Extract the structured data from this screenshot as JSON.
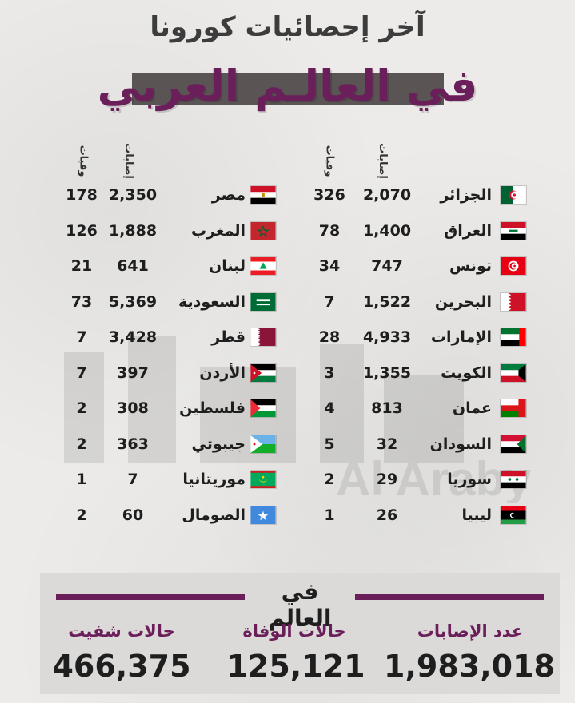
{
  "header": {
    "line1": "آخر إحصائيات كورونا",
    "line2": "في العالـم العربي"
  },
  "columns": {
    "cases": "إصابات",
    "deaths": "وفيات"
  },
  "right_table": [
    {
      "name": "الجزائر",
      "cases": "2,070",
      "deaths": "326",
      "flag": "algeria-flag"
    },
    {
      "name": "العراق",
      "cases": "1,400",
      "deaths": "78",
      "flag": "iraq-flag"
    },
    {
      "name": "تونس",
      "cases": "747",
      "deaths": "34",
      "flag": "tunisia-flag"
    },
    {
      "name": "البحرين",
      "cases": "1,522",
      "deaths": "7",
      "flag": "bahrain-flag"
    },
    {
      "name": "الإمارات",
      "cases": "4,933",
      "deaths": "28",
      "flag": "uae-flag"
    },
    {
      "name": "الكويت",
      "cases": "1,355",
      "deaths": "3",
      "flag": "kuwait-flag"
    },
    {
      "name": "عمان",
      "cases": "813",
      "deaths": "4",
      "flag": "oman-flag"
    },
    {
      "name": "السودان",
      "cases": "32",
      "deaths": "5",
      "flag": "sudan-flag"
    },
    {
      "name": "سوريا",
      "cases": "29",
      "deaths": "2",
      "flag": "syria-flag"
    },
    {
      "name": "ليبيا",
      "cases": "26",
      "deaths": "1",
      "flag": "libya-flag"
    }
  ],
  "left_table": [
    {
      "name": "مصر",
      "cases": "2,350",
      "deaths": "178",
      "flag": "egypt-flag"
    },
    {
      "name": "المغرب",
      "cases": "1,888",
      "deaths": "126",
      "flag": "morocco-flag"
    },
    {
      "name": "لبنان",
      "cases": "641",
      "deaths": "21",
      "flag": "lebanon-flag"
    },
    {
      "name": "السعودية",
      "cases": "5,369",
      "deaths": "73",
      "flag": "saudi-flag"
    },
    {
      "name": "قطر",
      "cases": "3,428",
      "deaths": "7",
      "flag": "qatar-flag"
    },
    {
      "name": "الأردن",
      "cases": "397",
      "deaths": "7",
      "flag": "jordan-flag"
    },
    {
      "name": "فلسطين",
      "cases": "308",
      "deaths": "2",
      "flag": "palestine-flag"
    },
    {
      "name": "جيبوتي",
      "cases": "363",
      "deaths": "2",
      "flag": "djibouti-flag"
    },
    {
      "name": "موريتانيا",
      "cases": "7",
      "deaths": "1",
      "flag": "mauritania-flag"
    },
    {
      "name": "الصومال",
      "cases": "60",
      "deaths": "2",
      "flag": "somalia-flag"
    }
  ],
  "world": {
    "title": "في العالم",
    "cases_label": "عدد الإصابات",
    "cases_value": "1,983,018",
    "deaths_label": "حالات الوفاة",
    "deaths_value": "125,121",
    "recovered_label": "حالات شفيت",
    "recovered_value": "466,375"
  },
  "colors": {
    "accent": "#6b1f5a",
    "background": "#ecebe9",
    "text": "#1e1e1e",
    "bar": "#5a5554"
  },
  "watermark": {
    "icon": "alaraby-logo-watermark",
    "text": "Al Araby"
  }
}
